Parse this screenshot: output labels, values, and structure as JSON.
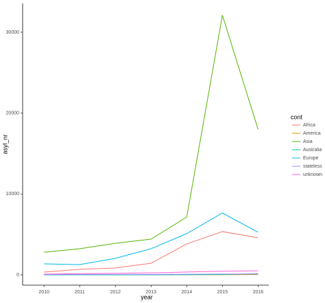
{
  "chart_data": {
    "type": "line",
    "x": [
      2010,
      2011,
      2012,
      2013,
      2014,
      2015,
      2016
    ],
    "xlabel": "year",
    "ylabel": "asyl_nr",
    "legend_title": "cont",
    "xlim": [
      2009.4,
      2016.3
    ],
    "xticks": [
      2010,
      2011,
      2012,
      2013,
      2014,
      2015,
      2016
    ],
    "ylim": [
      -1270,
      33560
    ],
    "yticks": [
      0,
      10000,
      20000,
      30000
    ],
    "legend": "right",
    "series": [
      {
        "name": "Africa",
        "color": "#F8766D",
        "values": [
          340,
          680,
          850,
          1440,
          3820,
          5350,
          4590
        ]
      },
      {
        "name": "America",
        "color": "#C49A00",
        "values": [
          20,
          20,
          25,
          25,
          30,
          30,
          40
        ]
      },
      {
        "name": "Asia",
        "color": "#53B400",
        "values": [
          2800,
          3230,
          3900,
          4420,
          7140,
          32100,
          18000
        ]
      },
      {
        "name": "Australia",
        "color": "#00C094",
        "values": [
          0,
          0,
          0,
          0,
          20,
          40,
          150
        ]
      },
      {
        "name": "Europe",
        "color": "#00B6EB",
        "values": [
          1360,
          1270,
          2040,
          3230,
          5100,
          7650,
          5270
        ]
      },
      {
        "name": "stateless",
        "color": "#A58AFF",
        "values": [
          50,
          50,
          60,
          60,
          80,
          100,
          110
        ]
      },
      {
        "name": "unknown",
        "color": "#FB61D7",
        "values": [
          100,
          150,
          200,
          250,
          350,
          450,
          500
        ]
      }
    ]
  }
}
